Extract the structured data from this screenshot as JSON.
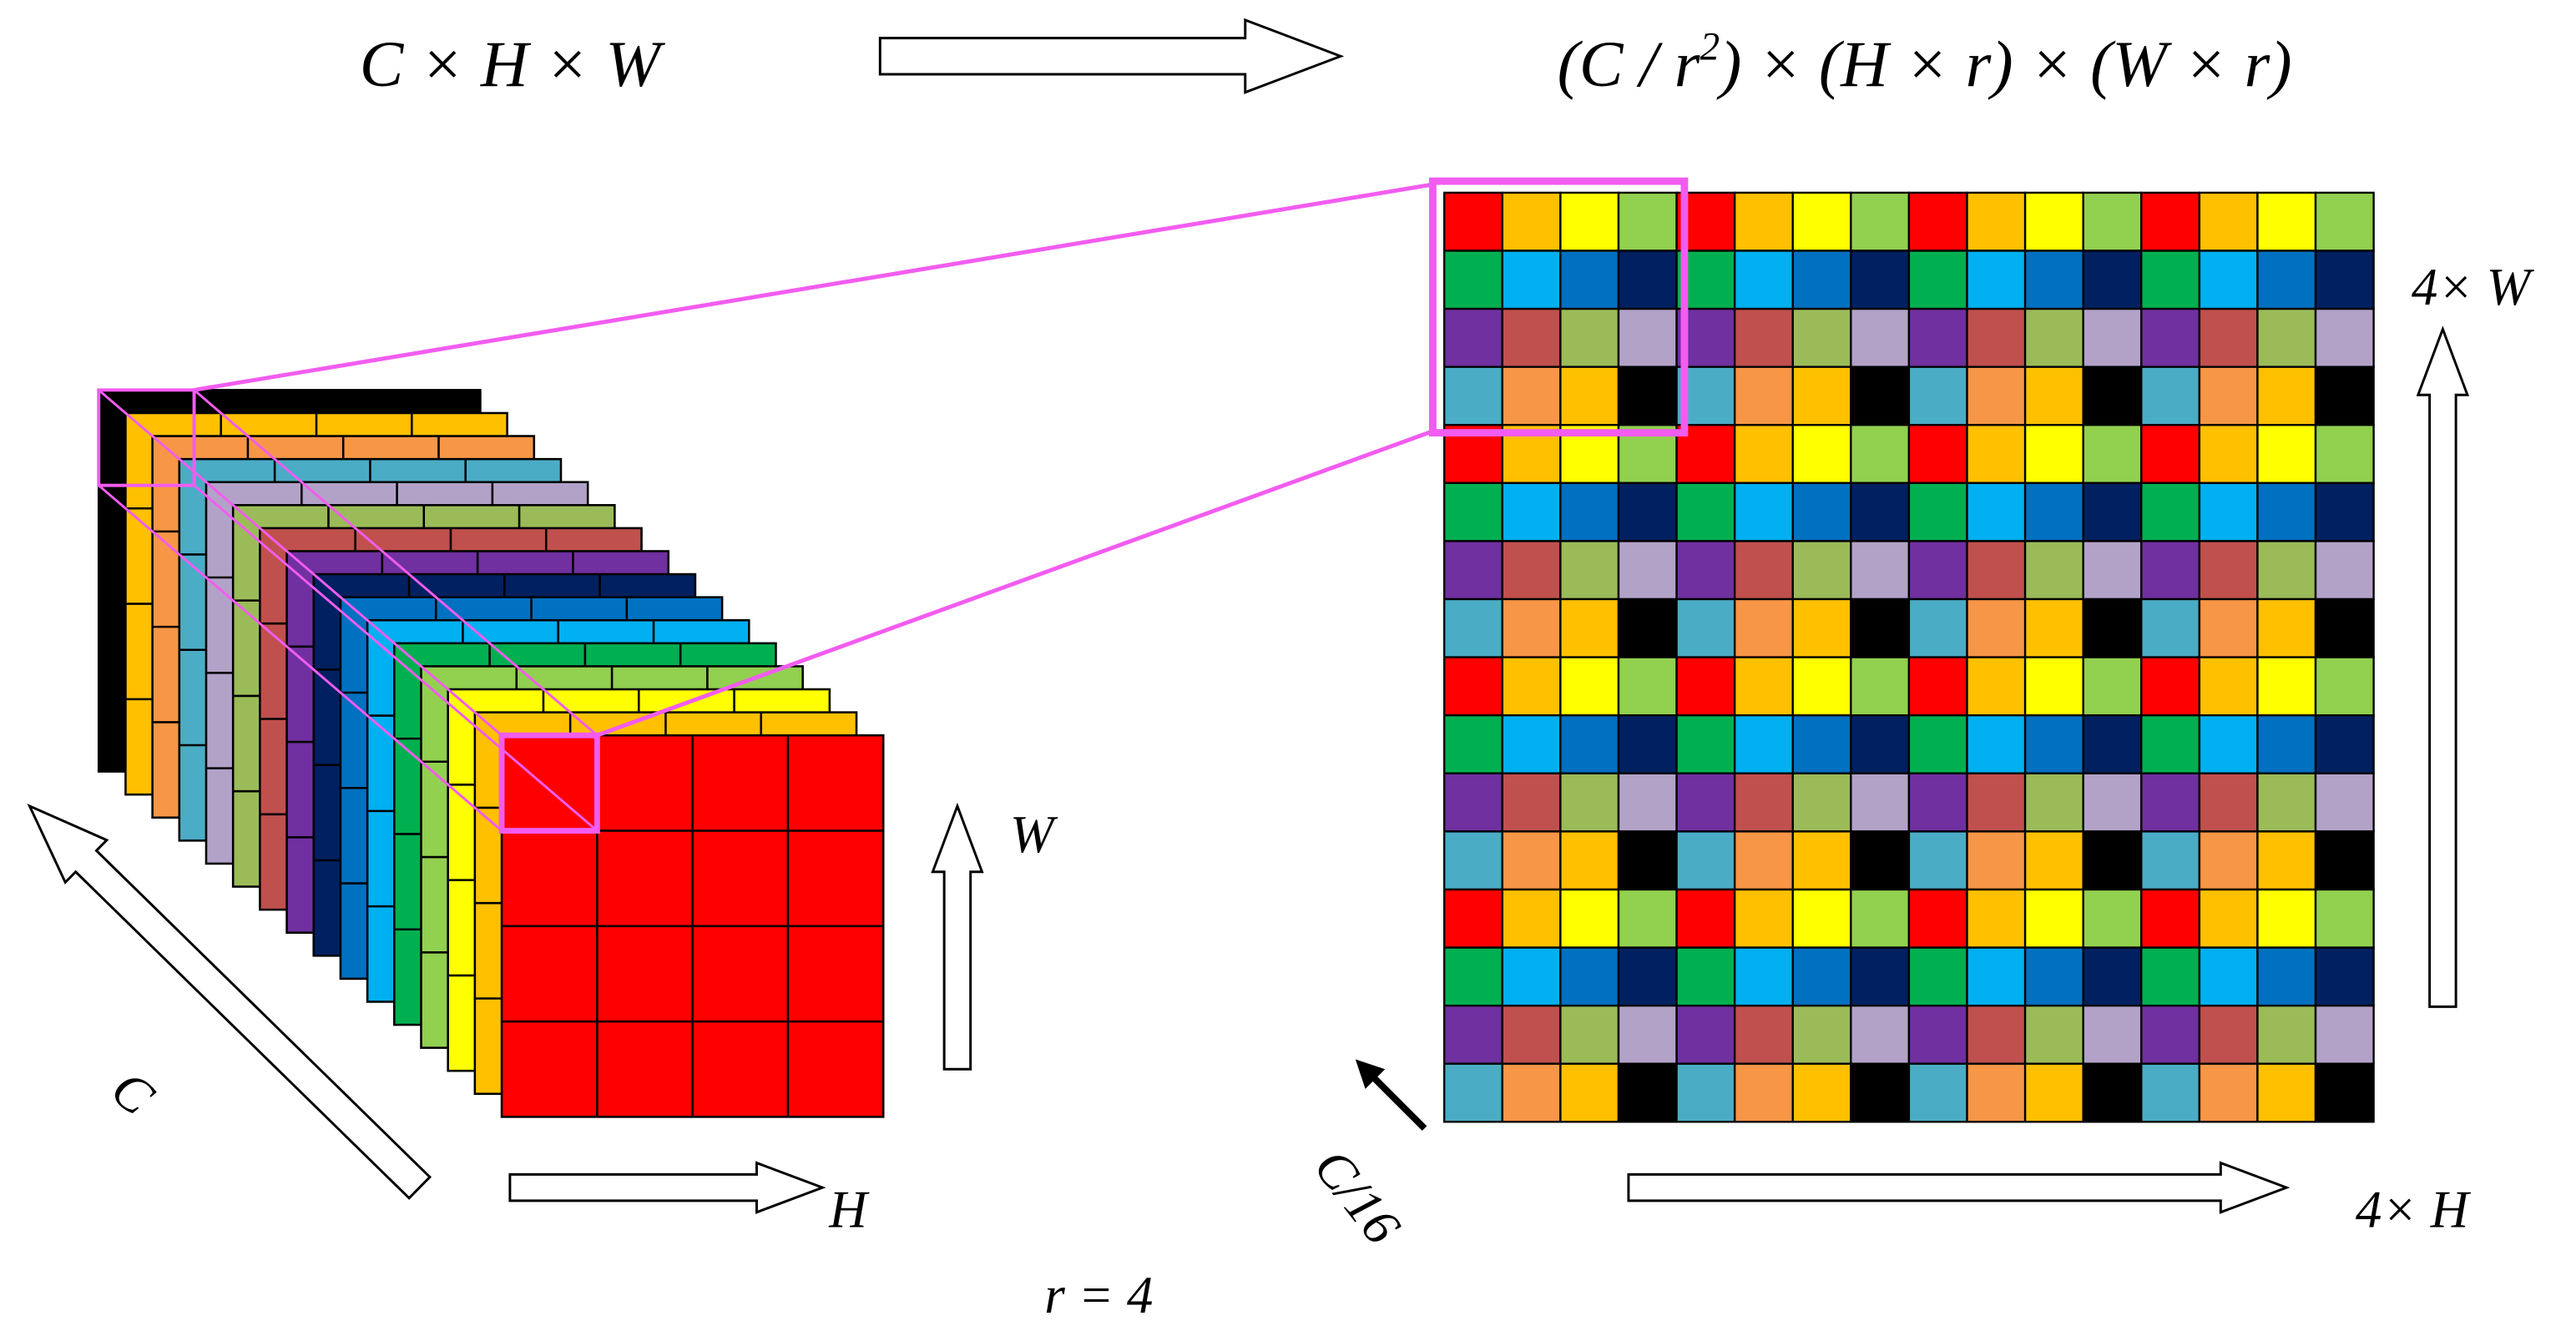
{
  "header": {
    "input_shape": "C × H × W",
    "output_shape": {
      "before_sup": "(C / r",
      "sup": "2",
      "after_sup": ") × (H × r) × (W × r)"
    }
  },
  "left_block": {
    "axis_w": "W",
    "axis_h": "H",
    "axis_c": "C"
  },
  "ratio": "r = 4",
  "right_block": {
    "axis_w": "4× W",
    "axis_h": "4× H",
    "axis_c": "C/16"
  }
}
